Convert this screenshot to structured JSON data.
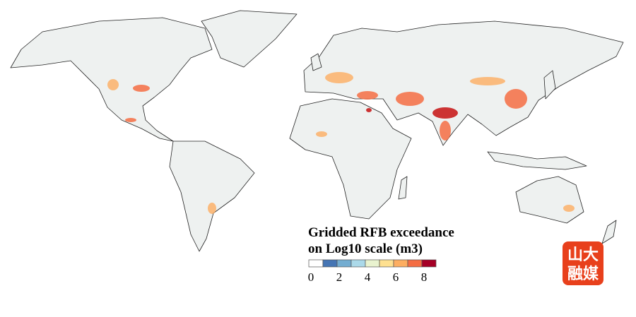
{
  "legend": {
    "title": [
      "Gridded RFB exceedance",
      "on Log10 scale (m3)"
    ],
    "bins": [
      0,
      1,
      2,
      3,
      4,
      5,
      6,
      7,
      8,
      9
    ],
    "colors": [
      "#ffffff",
      "#4575b4",
      "#74add1",
      "#abd9e9",
      "#e9f3cf",
      "#fee090",
      "#fdae61",
      "#f46d43",
      "#a50026"
    ],
    "ticks": [
      0,
      2,
      4,
      6,
      8
    ]
  },
  "logo": {
    "line1": "山大",
    "line2": "融媒"
  }
}
